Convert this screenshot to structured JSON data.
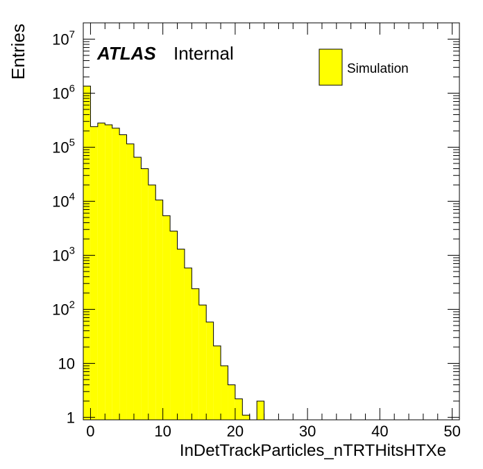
{
  "chart_data": {
    "type": "bar",
    "histogram": true,
    "title": "",
    "xlabel": "InDetTrackParticles_nTRTHitsHTXe",
    "ylabel": "Entries",
    "xlim": [
      -1,
      51
    ],
    "ylim": [
      0.9,
      20000000
    ],
    "yscale": "log",
    "grid": false,
    "legend_position": "top-right",
    "atlas_label": "ATLAS",
    "atlas_sublabel": "Internal",
    "x_ticks": [
      0,
      10,
      20,
      30,
      40,
      50
    ],
    "x_tick_labels": [
      "0",
      "10",
      "20",
      "30",
      "40",
      "50"
    ],
    "y_ticks": [
      1,
      10,
      100,
      1000,
      10000,
      100000,
      1000000,
      10000000
    ],
    "y_tick_labels": [
      {
        "base": "1",
        "exp": ""
      },
      {
        "base": "10",
        "exp": ""
      },
      {
        "base": "10",
        "exp": "2"
      },
      {
        "base": "10",
        "exp": "3"
      },
      {
        "base": "10",
        "exp": "4"
      },
      {
        "base": "10",
        "exp": "5"
      },
      {
        "base": "10",
        "exp": "6"
      },
      {
        "base": "10",
        "exp": "7"
      }
    ],
    "bin_edges": [
      -1,
      0,
      1,
      2,
      3,
      4,
      5,
      6,
      7,
      8,
      9,
      10,
      11,
      12,
      13,
      14,
      15,
      16,
      17,
      18,
      19,
      20,
      21,
      22,
      23,
      24,
      25,
      26,
      27,
      28,
      29,
      30,
      31,
      32,
      33,
      34,
      35,
      36,
      37,
      38,
      39,
      40,
      41,
      42,
      43,
      44,
      45,
      46,
      47,
      48,
      49,
      50,
      51
    ],
    "series": [
      {
        "name": "Simulation",
        "color": "#ffff00",
        "edge_color": "#000000",
        "values": [
          1350000,
          240000,
          280000,
          260000,
          225000,
          170000,
          115000,
          65000,
          40000,
          20000,
          10500,
          5400,
          2800,
          1300,
          580,
          240,
          120,
          58,
          21,
          9,
          4,
          2.2,
          1.1,
          0,
          2,
          0,
          0,
          0,
          0,
          0,
          0,
          0,
          0,
          0,
          0,
          0,
          0,
          0,
          0,
          0,
          0,
          0,
          0,
          0,
          0,
          0,
          0,
          0,
          0,
          0,
          0,
          0
        ]
      }
    ]
  }
}
